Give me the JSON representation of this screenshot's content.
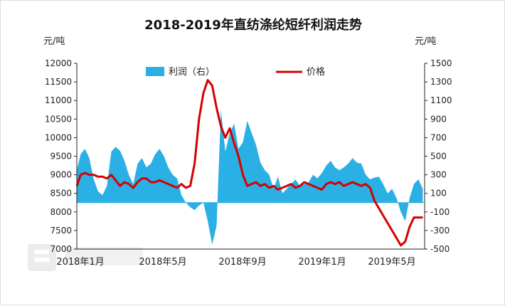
{
  "chart_data": {
    "type": "line",
    "title": "2018-2019年直纺涤纶短纤利润走势",
    "ylabel_left": "元/吨",
    "ylabel_right": "元/吨",
    "x_ticks": [
      "2018年1月",
      "2018年5月",
      "2018年9月",
      "2019年1月",
      "2019年5月"
    ],
    "y_left_ticks": [
      "12000",
      "11500",
      "11000",
      "10500",
      "10000",
      "9500",
      "9000",
      "8500",
      "8000",
      "7500",
      "7000"
    ],
    "y_right_ticks": [
      "1500",
      "1300",
      "1100",
      "900",
      "700",
      "500",
      "300",
      "100",
      "-100",
      "-300",
      "-500"
    ],
    "ylim_left": [
      7000,
      12000
    ],
    "ylim_right": [
      -500,
      1500
    ],
    "legend_position": "top",
    "series": [
      {
        "name": "利润（右）",
        "kind": "area",
        "axis": "right",
        "color": "#2ab0e4",
        "x": [
          "2018-01-01",
          "2018-01-07",
          "2018-01-14",
          "2018-01-21",
          "2018-01-28",
          "2018-02-04",
          "2018-02-11",
          "2018-02-18",
          "2018-02-25",
          "2018-03-04",
          "2018-03-11",
          "2018-03-18",
          "2018-03-25",
          "2018-04-01",
          "2018-04-08",
          "2018-04-15",
          "2018-04-22",
          "2018-04-29",
          "2018-05-06",
          "2018-05-13",
          "2018-05-20",
          "2018-05-27",
          "2018-06-03",
          "2018-06-10",
          "2018-06-17",
          "2018-06-24",
          "2018-07-01",
          "2018-07-08",
          "2018-07-15",
          "2018-07-22",
          "2018-07-29",
          "2018-08-05",
          "2018-08-12",
          "2018-08-19",
          "2018-08-26",
          "2018-09-02",
          "2018-09-09",
          "2018-09-16",
          "2018-09-23",
          "2018-09-30",
          "2018-10-07",
          "2018-10-14",
          "2018-10-21",
          "2018-10-28",
          "2018-11-04",
          "2018-11-11",
          "2018-11-18",
          "2018-11-25",
          "2018-12-02",
          "2018-12-09",
          "2018-12-16",
          "2018-12-23",
          "2018-12-30",
          "2019-01-06",
          "2019-01-13",
          "2019-01-20",
          "2019-01-27",
          "2019-02-03",
          "2019-02-10",
          "2019-02-17",
          "2019-02-24",
          "2019-03-03",
          "2019-03-10",
          "2019-03-17",
          "2019-03-24",
          "2019-03-31",
          "2019-04-07",
          "2019-04-14",
          "2019-04-21",
          "2019-04-28",
          "2019-05-05",
          "2019-05-12",
          "2019-05-19",
          "2019-05-26",
          "2019-06-02",
          "2019-06-09",
          "2019-06-16",
          "2019-06-23",
          "2019-06-30",
          "2019-07-07"
        ],
        "values": [
          350,
          520,
          580,
          480,
          250,
          120,
          80,
          180,
          550,
          600,
          560,
          450,
          300,
          200,
          420,
          480,
          380,
          420,
          520,
          580,
          500,
          380,
          300,
          260,
          80,
          0,
          -50,
          -80,
          -30,
          0,
          -200,
          -450,
          -250,
          1000,
          550,
          750,
          850,
          580,
          650,
          880,
          750,
          620,
          430,
          350,
          300,
          150,
          280,
          100,
          150,
          200,
          250,
          180,
          200,
          220,
          300,
          260,
          320,
          400,
          450,
          380,
          350,
          380,
          420,
          480,
          430,
          420,
          300,
          250,
          270,
          280,
          200,
          100,
          150,
          50,
          -100,
          -200,
          50,
          200,
          250,
          150
        ]
      },
      {
        "name": "价格",
        "kind": "line",
        "axis": "left",
        "color": "#d40000",
        "x": [
          "2018-01-01",
          "2018-01-07",
          "2018-01-14",
          "2018-01-21",
          "2018-01-28",
          "2018-02-04",
          "2018-02-11",
          "2018-02-18",
          "2018-02-25",
          "2018-03-04",
          "2018-03-11",
          "2018-03-18",
          "2018-03-25",
          "2018-04-01",
          "2018-04-08",
          "2018-04-15",
          "2018-04-22",
          "2018-04-29",
          "2018-05-06",
          "2018-05-13",
          "2018-05-20",
          "2018-05-27",
          "2018-06-03",
          "2018-06-10",
          "2018-06-17",
          "2018-06-24",
          "2018-07-01",
          "2018-07-08",
          "2018-07-15",
          "2018-07-22",
          "2018-07-29",
          "2018-08-05",
          "2018-08-12",
          "2018-08-19",
          "2018-08-26",
          "2018-09-02",
          "2018-09-09",
          "2018-09-16",
          "2018-09-23",
          "2018-09-30",
          "2018-10-07",
          "2018-10-14",
          "2018-10-21",
          "2018-10-28",
          "2018-11-04",
          "2018-11-11",
          "2018-11-18",
          "2018-11-25",
          "2018-12-02",
          "2018-12-09",
          "2018-12-16",
          "2018-12-23",
          "2018-12-30",
          "2019-01-06",
          "2019-01-13",
          "2019-01-20",
          "2019-01-27",
          "2019-02-03",
          "2019-02-10",
          "2019-02-17",
          "2019-02-24",
          "2019-03-03",
          "2019-03-10",
          "2019-03-17",
          "2019-03-24",
          "2019-03-31",
          "2019-04-07",
          "2019-04-14",
          "2019-04-21",
          "2019-04-28",
          "2019-05-05",
          "2019-05-12",
          "2019-05-19",
          "2019-05-26",
          "2019-06-02",
          "2019-06-09",
          "2019-06-16",
          "2019-06-23",
          "2019-06-30",
          "2019-07-07"
        ],
        "values": [
          8700,
          9000,
          9050,
          9000,
          9000,
          8950,
          8950,
          8900,
          9000,
          8850,
          8700,
          8800,
          8750,
          8650,
          8800,
          8900,
          8900,
          8800,
          8800,
          8850,
          8800,
          8750,
          8700,
          8650,
          8750,
          8650,
          8700,
          9300,
          10500,
          11200,
          11550,
          11400,
          10800,
          10300,
          10000,
          10250,
          9850,
          9500,
          9000,
          8700,
          8750,
          8800,
          8700,
          8750,
          8650,
          8700,
          8600,
          8650,
          8700,
          8750,
          8650,
          8700,
          8800,
          8750,
          8700,
          8650,
          8600,
          8750,
          8800,
          8750,
          8800,
          8700,
          8750,
          8800,
          8750,
          8700,
          8750,
          8650,
          8300,
          8100,
          7900,
          7700,
          7500,
          7300,
          7100,
          7200,
          7600,
          7850,
          7850,
          7850
        ]
      }
    ]
  }
}
